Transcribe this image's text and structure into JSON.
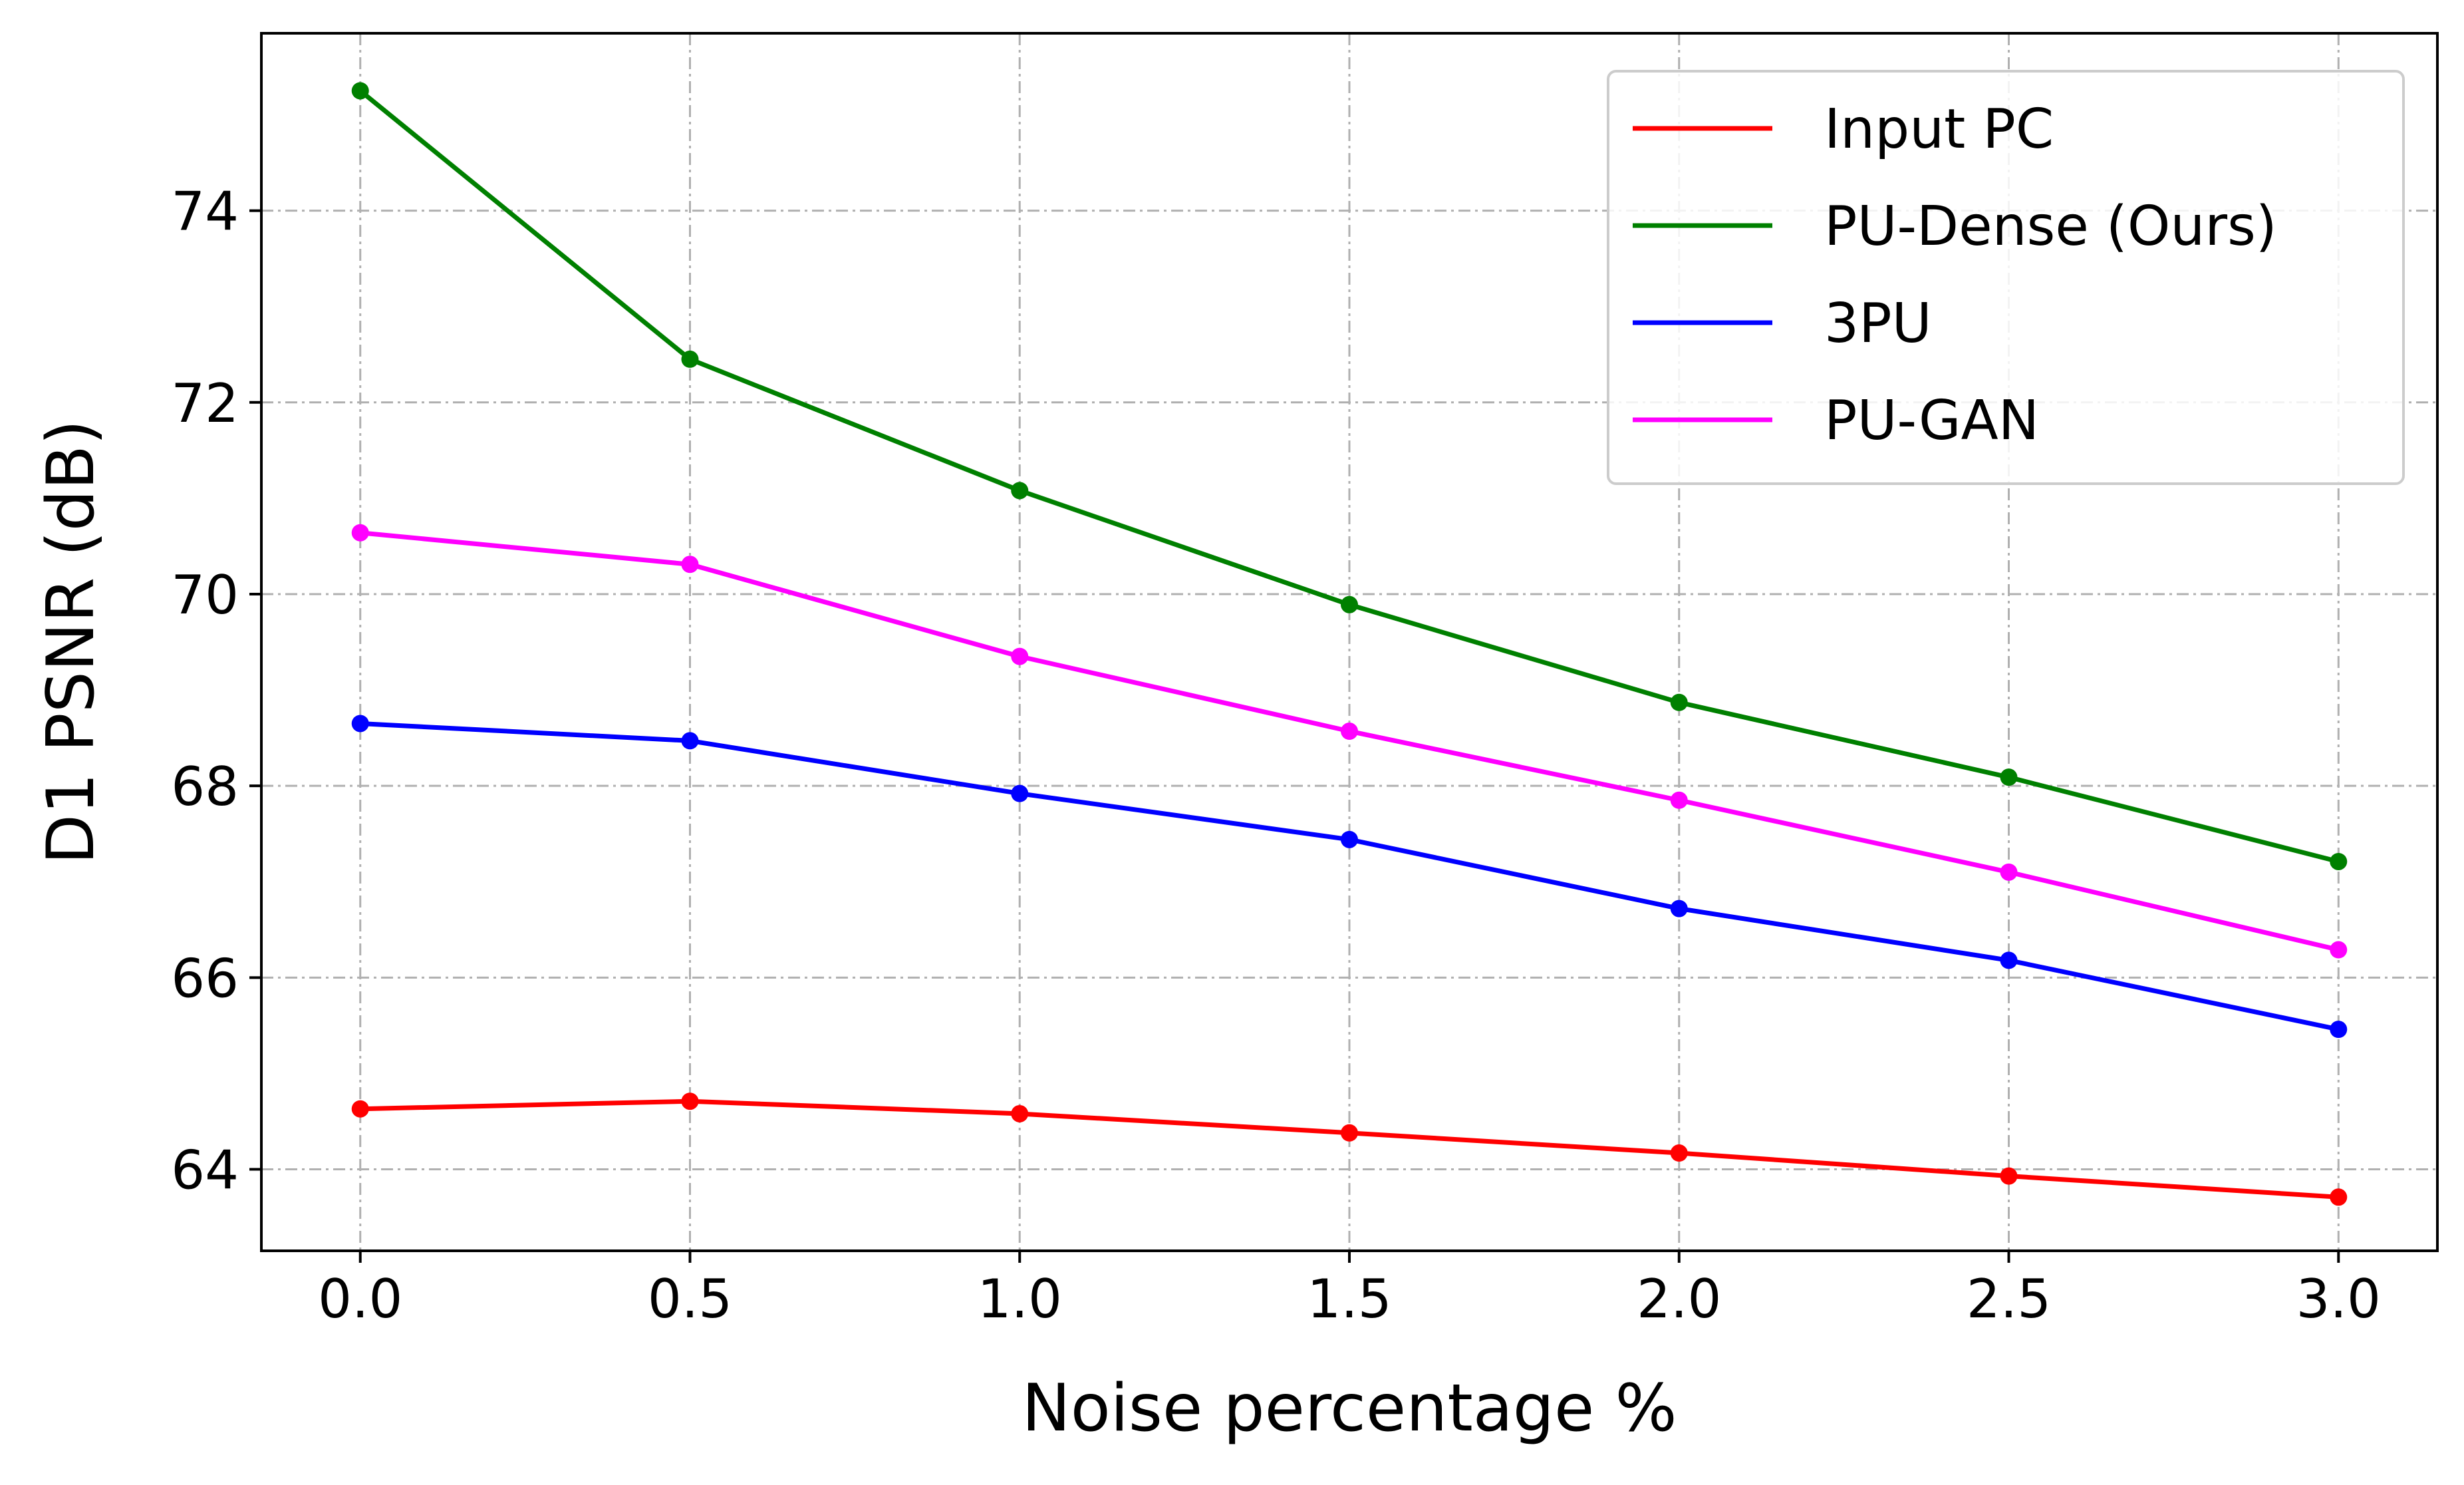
{
  "chart_data": {
    "type": "line",
    "xlabel": "Noise percentage %",
    "ylabel": "D1 PSNR (dB)",
    "x": [
      0.0,
      0.5,
      1.0,
      1.5,
      2.0,
      2.5,
      3.0
    ],
    "xlim": [
      -0.15,
      3.15
    ],
    "ylim": [
      63.15,
      75.85
    ],
    "xticks": [
      "0.0",
      "0.5",
      "1.0",
      "1.5",
      "2.0",
      "2.5",
      "3.0"
    ],
    "yticks": [
      "64",
      "66",
      "68",
      "70",
      "72",
      "74"
    ],
    "grid": true,
    "legend_position": "top-right",
    "series": [
      {
        "name": "Input PC",
        "color": "#ff0000",
        "values": [
          64.63,
          64.71,
          64.58,
          64.38,
          64.17,
          63.93,
          63.71
        ]
      },
      {
        "name": "PU-Dense (Ours)",
        "color": "#008000",
        "values": [
          75.25,
          72.45,
          71.08,
          69.89,
          68.87,
          68.09,
          67.21
        ]
      },
      {
        "name": "3PU",
        "color": "#0000ff",
        "values": [
          68.65,
          68.47,
          67.92,
          67.44,
          66.72,
          66.18,
          65.46
        ]
      },
      {
        "name": "PU-GAN",
        "color": "#ff00ff",
        "values": [
          70.64,
          70.31,
          69.35,
          68.57,
          67.85,
          67.1,
          66.29
        ]
      }
    ]
  }
}
